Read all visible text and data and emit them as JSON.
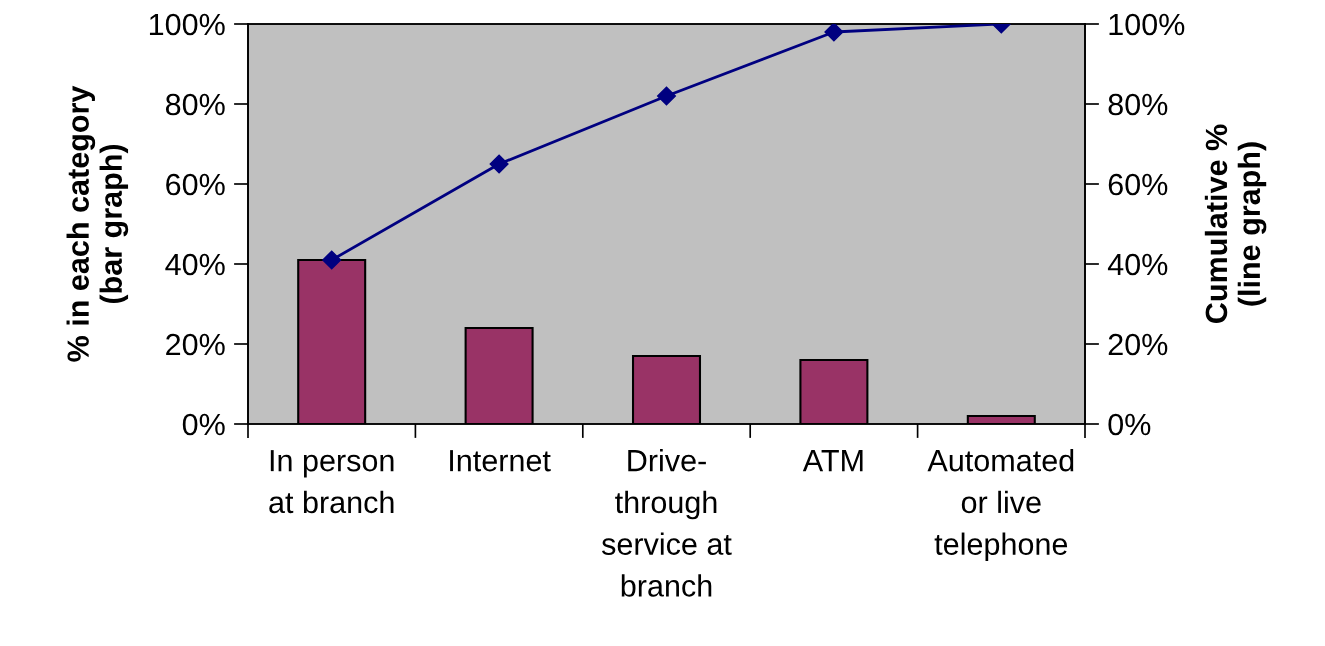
{
  "chart_data": {
    "type": "bar",
    "categories": [
      "In person\nat branch",
      "Internet",
      "Drive-\nthrough\nservice at\nbranch",
      "ATM",
      "Automated\nor live\ntelephone"
    ],
    "ylabel": "% in each category\n(bar graph)",
    "y2label": "Cumulative %\n(line graph)",
    "series": [
      {
        "color": "#993366",
        "values": [
          41,
          24,
          17,
          16,
          2
        ]
      },
      {
        "type": "line",
        "axis": "y2",
        "color": "#000080",
        "marker": "diamond",
        "line_style": "solid",
        "values": [
          41,
          65,
          82,
          98,
          100
        ]
      }
    ],
    "ylim": [
      0,
      100
    ],
    "yticks": [
      {
        "value": 0,
        "label": "0%"
      },
      {
        "value": 20,
        "label": "20%"
      },
      {
        "value": 40,
        "label": "40%"
      },
      {
        "value": 60,
        "label": "60%"
      },
      {
        "value": 80,
        "label": "80%"
      },
      {
        "value": 100,
        "label": "100%"
      }
    ],
    "y2lim": [
      0,
      100
    ],
    "y2ticks": [
      {
        "value": 0,
        "label": "0%"
      },
      {
        "value": 20,
        "label": "20%"
      },
      {
        "value": 40,
        "label": "40%"
      },
      {
        "value": 60,
        "label": "60%"
      },
      {
        "value": 80,
        "label": "80%"
      },
      {
        "value": 100,
        "label": "100%"
      }
    ],
    "grid": false,
    "legend": false
  }
}
